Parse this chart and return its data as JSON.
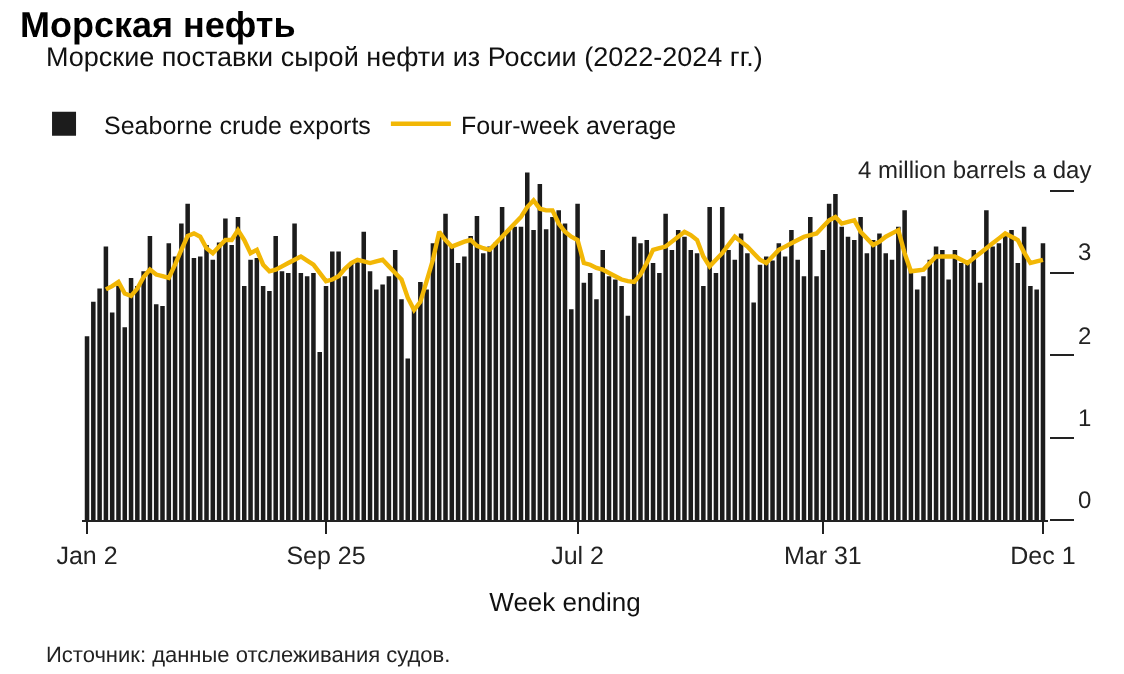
{
  "chart_data": {
    "type": "bar",
    "title": "Морская нефть",
    "subtitle": "Морские поставки сырой нефти из России (2022-2024 гг.)",
    "xlabel": "Week ending",
    "annotations": [
      "Источник: данные отслеживания судов."
    ],
    "legend": "top left",
    "ylim": [
      0,
      4.25
    ],
    "yticks": [
      0,
      1,
      2,
      3,
      {
        "value": 4,
        "label": "4 million barrels a day"
      }
    ],
    "categories": [
      "Jan 2",
      null,
      null,
      null,
      null,
      null,
      null,
      null,
      null,
      null,
      null,
      null,
      null,
      null,
      null,
      null,
      null,
      null,
      null,
      null,
      null,
      null,
      null,
      null,
      null,
      null,
      null,
      null,
      null,
      null,
      null,
      null,
      null,
      null,
      null,
      null,
      null,
      null,
      "Sep 25",
      null,
      null,
      null,
      null,
      null,
      null,
      null,
      null,
      null,
      null,
      null,
      null,
      null,
      null,
      null,
      null,
      null,
      null,
      null,
      null,
      null,
      null,
      null,
      null,
      null,
      null,
      null,
      null,
      null,
      null,
      null,
      null,
      null,
      null,
      null,
      null,
      null,
      null,
      null,
      "Jul 2",
      null,
      null,
      null,
      null,
      null,
      null,
      null,
      null,
      null,
      null,
      null,
      null,
      null,
      null,
      null,
      null,
      null,
      null,
      null,
      null,
      null,
      null,
      null,
      null,
      null,
      null,
      null,
      null,
      null,
      null,
      null,
      null,
      null,
      null,
      null,
      null,
      null,
      null,
      "Mar 31",
      null,
      null,
      null,
      null,
      null,
      null,
      null,
      null,
      null,
      null,
      null,
      null,
      null,
      null,
      null,
      null,
      null,
      null,
      null,
      null,
      null,
      null,
      null,
      null,
      null,
      null,
      null,
      null,
      null,
      null,
      null,
      null,
      null,
      null,
      "Dec 1"
    ],
    "series": [
      {
        "name": "Seaborne crude exports",
        "color": "#1c1c1c",
        "values": [
          2.23,
          2.65,
          2.81,
          3.32,
          2.52,
          2.89,
          2.34,
          2.94,
          2.84,
          3.02,
          3.45,
          2.62,
          2.6,
          3.36,
          3.2,
          3.6,
          3.84,
          3.18,
          3.2,
          3.34,
          3.16,
          3.37,
          3.66,
          3.34,
          3.68,
          2.84,
          3.16,
          3.18,
          2.84,
          2.78,
          3.45,
          3.02,
          3.0,
          3.6,
          3.0,
          2.96,
          3.0,
          2.04,
          2.84,
          3.26,
          3.26,
          2.96,
          3.12,
          3.13,
          3.5,
          3.02,
          2.8,
          2.86,
          2.96,
          3.28,
          2.68,
          1.96,
          2.6,
          2.89,
          2.8,
          3.36,
          3.45,
          3.72,
          3.32,
          3.12,
          3.2,
          3.45,
          3.69,
          3.24,
          3.32,
          3.37,
          3.8,
          3.52,
          3.56,
          3.56,
          4.22,
          3.52,
          4.08,
          3.53,
          3.68,
          3.76,
          3.6,
          2.56,
          3.84,
          2.88,
          3.0,
          2.68,
          3.28,
          2.96,
          2.92,
          2.84,
          2.48,
          3.44,
          3.36,
          3.4,
          3.12,
          3.0,
          3.72,
          3.28,
          3.52,
          3.44,
          3.28,
          3.24,
          2.84,
          3.8,
          3.0,
          3.8,
          3.28,
          3.16,
          3.48,
          3.24,
          2.64,
          3.1,
          3.2,
          3.15,
          3.36,
          3.2,
          3.52,
          3.16,
          2.96,
          3.68,
          2.96,
          3.28,
          3.84,
          3.96,
          3.56,
          3.44,
          3.4,
          3.68,
          3.24,
          3.4,
          3.48,
          3.24,
          3.16,
          3.56,
          3.76,
          3.04,
          2.8,
          2.96,
          3.16,
          3.32,
          3.28,
          2.92,
          3.28,
          3.12,
          3.12,
          3.28,
          2.88,
          3.76,
          3.32,
          3.36,
          3.48,
          3.52,
          3.12,
          3.56,
          2.84,
          2.8,
          3.36
        ]
      },
      {
        "name": "Four-week average",
        "type": "line",
        "color": "#f2b705",
        "values": [
          null,
          null,
          null,
          2.8,
          2.84,
          2.89,
          2.75,
          2.72,
          2.81,
          2.95,
          3.04,
          2.98,
          2.96,
          2.94,
          3.1,
          3.28,
          3.45,
          3.48,
          3.44,
          3.3,
          3.24,
          3.32,
          3.4,
          3.4,
          3.52,
          3.4,
          3.24,
          3.28,
          3.1,
          3.02,
          3.04,
          3.08,
          3.12,
          3.16,
          3.2,
          3.15,
          3.1,
          3.0,
          2.9,
          2.92,
          2.96,
          3.05,
          3.12,
          3.16,
          3.14,
          3.12,
          3.14,
          3.16,
          3.08,
          3.0,
          2.92,
          2.7,
          2.55,
          2.65,
          2.9,
          3.16,
          3.5,
          3.4,
          3.32,
          3.35,
          3.38,
          3.4,
          3.33,
          3.3,
          3.28,
          3.36,
          3.44,
          3.52,
          3.6,
          3.68,
          3.8,
          3.88,
          3.78,
          3.76,
          3.76,
          3.6,
          3.5,
          3.44,
          3.4,
          3.12,
          3.1,
          3.06,
          3.04,
          3.0,
          2.96,
          2.92,
          2.9,
          2.89,
          2.98,
          3.12,
          3.28,
          3.3,
          3.32,
          3.38,
          3.44,
          3.5,
          3.46,
          3.4,
          3.2,
          3.08,
          3.16,
          3.24,
          3.34,
          3.44,
          3.38,
          3.32,
          3.24,
          3.16,
          3.12,
          3.2,
          3.28,
          3.32,
          3.36,
          3.4,
          3.44,
          3.46,
          3.48,
          3.56,
          3.64,
          3.68,
          3.6,
          3.62,
          3.64,
          3.5,
          3.42,
          3.34,
          3.38,
          3.44,
          3.48,
          3.52,
          3.24,
          3.02,
          3.03,
          3.04,
          3.12,
          3.2,
          3.2,
          3.2,
          3.2,
          3.16,
          3.12,
          3.18,
          3.24,
          3.3,
          3.36,
          3.42,
          3.48,
          3.44,
          3.4,
          3.25,
          3.12,
          3.14,
          3.16
        ]
      }
    ]
  }
}
